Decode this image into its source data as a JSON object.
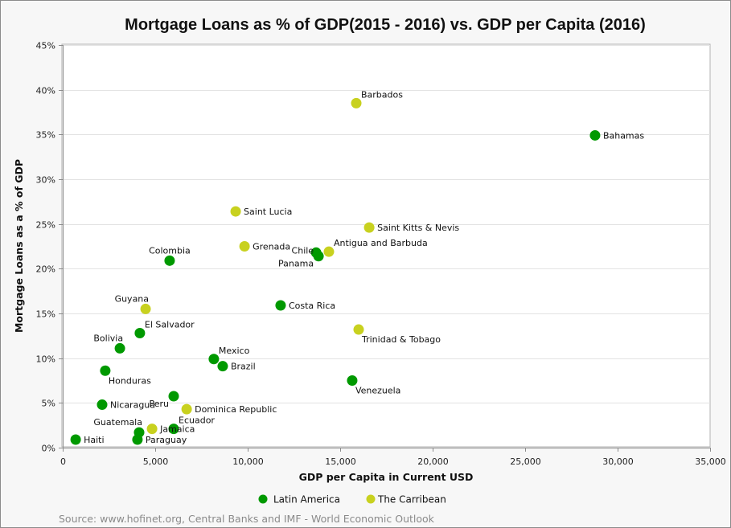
{
  "chart_data": {
    "type": "scatter",
    "title": "Mortgage Loans as % of GDP(2015 - 2016) vs. GDP per Capita (2016)",
    "xlabel": "GDP per Capita in Current USD",
    "ylabel": "Mortgage Loans as a % of GDP",
    "xlim": [
      0,
      35000
    ],
    "ylim": [
      0,
      45
    ],
    "x_ticks": [
      0,
      5000,
      10000,
      15000,
      20000,
      25000,
      30000,
      35000
    ],
    "x_tick_labels": [
      "0",
      "5,000",
      "10,000",
      "15,000",
      "20,000",
      "25,000",
      "30,000",
      "35,000"
    ],
    "y_ticks": [
      0,
      5,
      10,
      15,
      20,
      25,
      30,
      35,
      40,
      45
    ],
    "y_tick_labels": [
      "0%",
      "5%",
      "10%",
      "15%",
      "20%",
      "25%",
      "30%",
      "35%",
      "40%",
      "45%"
    ],
    "grid": "horizontal",
    "legend_position": "bottom",
    "source": "Source: www.hofinet.org, Central Banks and IMF - World Economic Outlook",
    "series": [
      {
        "name": "Latin America",
        "color": "#009900",
        "points": [
          {
            "label": "Bahamas",
            "x": 28780,
            "y": 34.9,
            "anchor": "right"
          },
          {
            "label": "Chile",
            "x": 13700,
            "y": 21.8,
            "anchor": "left"
          },
          {
            "label": "Panama",
            "x": 13830,
            "y": 21.4,
            "anchor": "below-left"
          },
          {
            "label": "Colombia",
            "x": 5780,
            "y": 20.9,
            "anchor": "above"
          },
          {
            "label": "Costa Rica",
            "x": 11780,
            "y": 15.9,
            "anchor": "right"
          },
          {
            "label": "El Salvador",
            "x": 4170,
            "y": 12.8,
            "anchor": "above-right"
          },
          {
            "label": "Bolivia",
            "x": 3090,
            "y": 11.1,
            "anchor": "above-left"
          },
          {
            "label": "Mexico",
            "x": 8170,
            "y": 9.9,
            "anchor": "above-right"
          },
          {
            "label": "Brazil",
            "x": 8650,
            "y": 9.1,
            "anchor": "right"
          },
          {
            "label": "Honduras",
            "x": 2300,
            "y": 8.6,
            "anchor": "below-right"
          },
          {
            "label": "Venezuela",
            "x": 15650,
            "y": 7.5,
            "anchor": "below-right"
          },
          {
            "label": "Peru",
            "x": 6000,
            "y": 5.75,
            "anchor": "below-left"
          },
          {
            "label": "Nicaragua",
            "x": 2130,
            "y": 4.8,
            "anchor": "right"
          },
          {
            "label": "Ecuador",
            "x": 6000,
            "y": 2.1,
            "anchor": "above-right"
          },
          {
            "label": "Guatemala",
            "x": 4130,
            "y": 1.7,
            "anchor": "above-left"
          },
          {
            "label": "Paraguay",
            "x": 4040,
            "y": 0.9,
            "anchor": "right"
          },
          {
            "label": "Haiti",
            "x": 700,
            "y": 0.9,
            "anchor": "right"
          }
        ]
      },
      {
        "name": "The Carribean",
        "color": "#c8d11f",
        "points": [
          {
            "label": "Barbados",
            "x": 15870,
            "y": 38.5,
            "anchor": "above-right"
          },
          {
            "label": "Saint Lucia",
            "x": 9350,
            "y": 26.4,
            "anchor": "right"
          },
          {
            "label": "Saint Kitts & Nevis",
            "x": 16570,
            "y": 24.6,
            "anchor": "right"
          },
          {
            "label": "Grenada",
            "x": 9830,
            "y": 22.5,
            "anchor": "right"
          },
          {
            "label": "Antigua and Barbuda",
            "x": 14390,
            "y": 21.9,
            "anchor": "above-right"
          },
          {
            "label": "Guyana",
            "x": 4480,
            "y": 15.5,
            "anchor": "above-left"
          },
          {
            "label": "Trinidad & Tobago",
            "x": 16000,
            "y": 13.2,
            "anchor": "below-right"
          },
          {
            "label": "Dominica Republic",
            "x": 6700,
            "y": 4.3,
            "anchor": "right"
          },
          {
            "label": "Jamaica",
            "x": 4830,
            "y": 2.1,
            "anchor": "right"
          }
        ]
      }
    ]
  }
}
